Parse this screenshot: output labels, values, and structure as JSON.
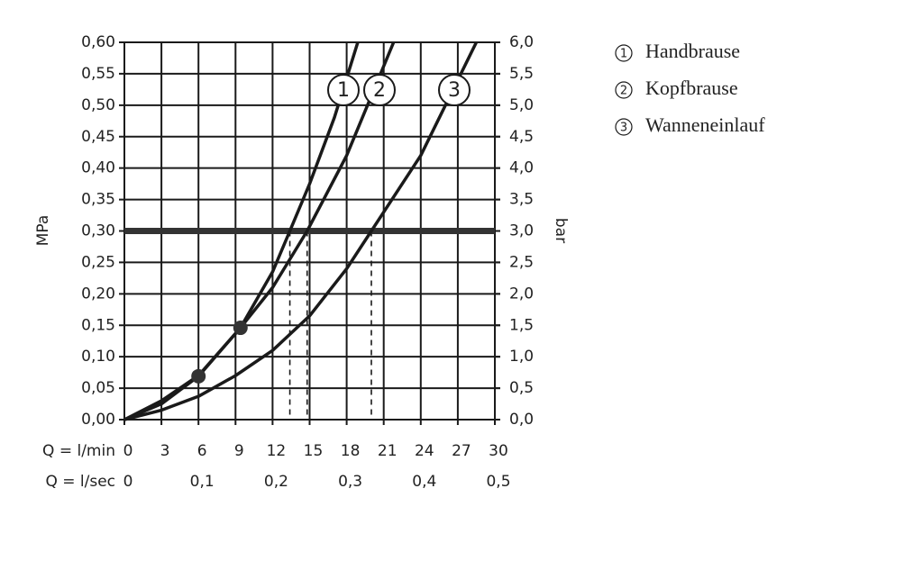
{
  "chart_data": {
    "type": "line",
    "y_label": "MPa",
    "y2_label": "bar",
    "x_label": "Q = l/min",
    "x2_label": "Q = l/sec",
    "xlim": [
      0,
      30
    ],
    "xticks": [
      0,
      3,
      6,
      9,
      12,
      15,
      18,
      21,
      24,
      27,
      30
    ],
    "x2lim": [
      0,
      0.5
    ],
    "x2ticks": [
      0,
      {
        "value": 0.1,
        "label": "0,1"
      },
      {
        "value": 0.2,
        "label": "0,2"
      },
      {
        "value": 0.3,
        "label": "0,3"
      },
      {
        "value": 0.4,
        "label": "0,4"
      },
      {
        "value": 0.5,
        "label": "0,5"
      }
    ],
    "ylim": [
      0,
      0.6
    ],
    "yticks": [
      {
        "value": 0,
        "label": "0,00"
      },
      {
        "value": 0.05,
        "label": "0,05"
      },
      {
        "value": 0.1,
        "label": "0,10"
      },
      {
        "value": 0.15,
        "label": "0,15"
      },
      {
        "value": 0.2,
        "label": "0,20"
      },
      {
        "value": 0.25,
        "label": "0,25"
      },
      {
        "value": 0.3,
        "label": "0,30"
      },
      {
        "value": 0.35,
        "label": "0,35"
      },
      {
        "value": 0.4,
        "label": "0,40"
      },
      {
        "value": 0.45,
        "label": "0,45"
      },
      {
        "value": 0.5,
        "label": "0,50"
      },
      {
        "value": 0.55,
        "label": "0,55"
      },
      {
        "value": 0.6,
        "label": "0,60"
      }
    ],
    "y2lim": [
      0,
      6
    ],
    "y2ticks": [
      {
        "value": 0,
        "label": "0,0"
      },
      {
        "value": 0.5,
        "label": "0,5"
      },
      {
        "value": 1,
        "label": "1,0"
      },
      {
        "value": 1.5,
        "label": "1,5"
      },
      {
        "value": 2,
        "label": "2,0"
      },
      {
        "value": 2.5,
        "label": "2,5"
      },
      {
        "value": 3,
        "label": "3,0"
      },
      {
        "value": 3.5,
        "label": "3,5"
      },
      {
        "value": 4,
        "label": "4,0"
      },
      {
        "value": 4.5,
        "label": "4,5"
      },
      {
        "value": 5,
        "label": "5,0"
      },
      {
        "value": 5.5,
        "label": "5,5"
      },
      {
        "value": 6,
        "label": "6,0"
      }
    ],
    "grid": true,
    "color": "#1a1a1a",
    "reference_pressure": 0.3,
    "reference_flows": [
      13.4,
      14.8,
      20
    ],
    "points": [
      {
        "x": 6,
        "y": 0.069
      },
      {
        "x": 9.4,
        "y": 0.146
      }
    ],
    "series": [
      {
        "name": "Handbrause",
        "label": "1",
        "x": [
          0,
          3,
          6,
          9.4,
          12,
          13.4,
          15,
          17,
          18.9
        ],
        "values": [
          0,
          0.025,
          0.069,
          0.146,
          0.235,
          0.3,
          0.375,
          0.48,
          0.6
        ]
      },
      {
        "name": "Kopfbrause",
        "label": "2",
        "x": [
          0,
          3,
          6,
          9.4,
          12,
          14.8,
          18,
          21.8
        ],
        "values": [
          0,
          0.03,
          0.07,
          0.146,
          0.21,
          0.3,
          0.42,
          0.6
        ]
      },
      {
        "name": "Wanneneinlauf",
        "label": "3",
        "x": [
          0,
          3,
          6,
          9,
          12,
          15,
          18,
          20,
          24,
          28.5
        ],
        "values": [
          0,
          0.015,
          0.037,
          0.07,
          0.11,
          0.165,
          0.24,
          0.3,
          0.42,
          0.6
        ]
      }
    ]
  }
}
